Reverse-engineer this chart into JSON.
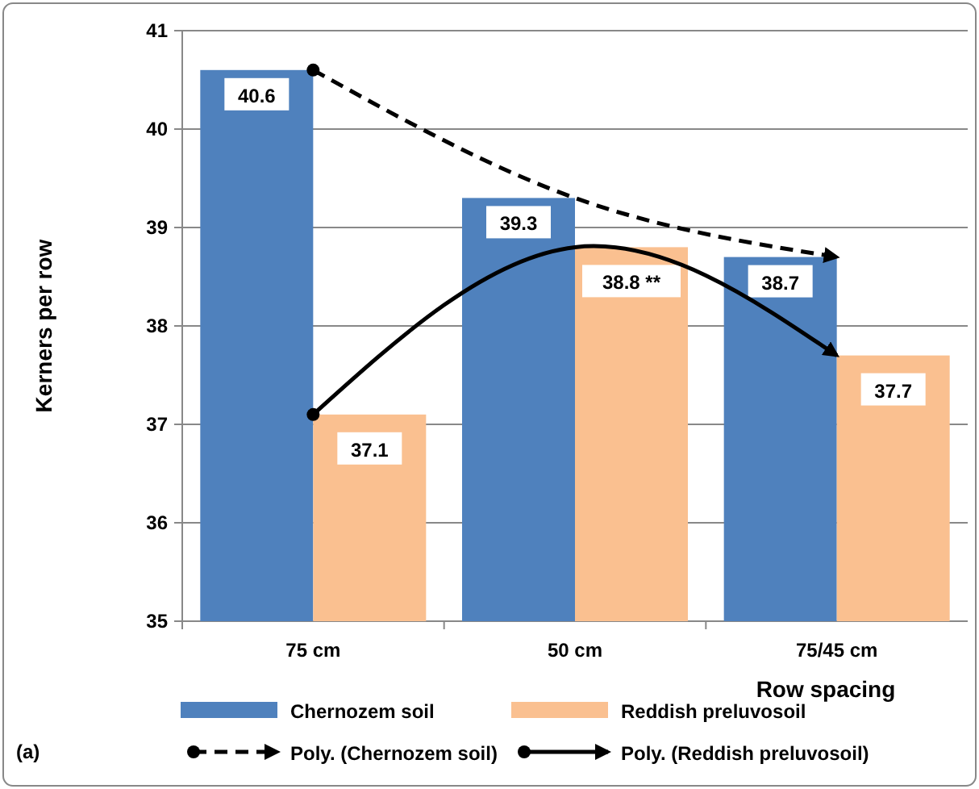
{
  "chart_data": {
    "type": "bar",
    "xlabel": "Row spacing",
    "ylabel": "Kerners per row",
    "categories": [
      "75 cm",
      "50 cm",
      "75/45 cm"
    ],
    "ylim": [
      35,
      41
    ],
    "yticks": [
      35,
      36,
      37,
      38,
      39,
      40,
      41
    ],
    "grid": "y",
    "legend": "bottom",
    "annotations": [
      "(a)"
    ],
    "series": [
      {
        "name": "Chernozem soil",
        "color": "#4f81bd",
        "values": [
          40.6,
          39.3,
          38.7
        ],
        "value_labels": [
          "40.6",
          "39.3",
          "38.7"
        ]
      },
      {
        "name": "Reddish preluvosoil",
        "color": "#fac090",
        "values": [
          37.1,
          38.8,
          37.7
        ],
        "value_labels": [
          "37.1",
          "38.8 **",
          "37.7"
        ]
      },
      {
        "type": "line",
        "name": "Poly. (Chernozem soil)",
        "color": "#000000",
        "values": [
          40.6,
          39.3,
          38.7
        ],
        "line_style": "dashed"
      },
      {
        "type": "line",
        "name": "Poly. (Reddish preluvosoil)",
        "color": "#000000",
        "values": [
          37.1,
          38.8,
          37.7
        ],
        "line_style": "solid"
      }
    ]
  }
}
